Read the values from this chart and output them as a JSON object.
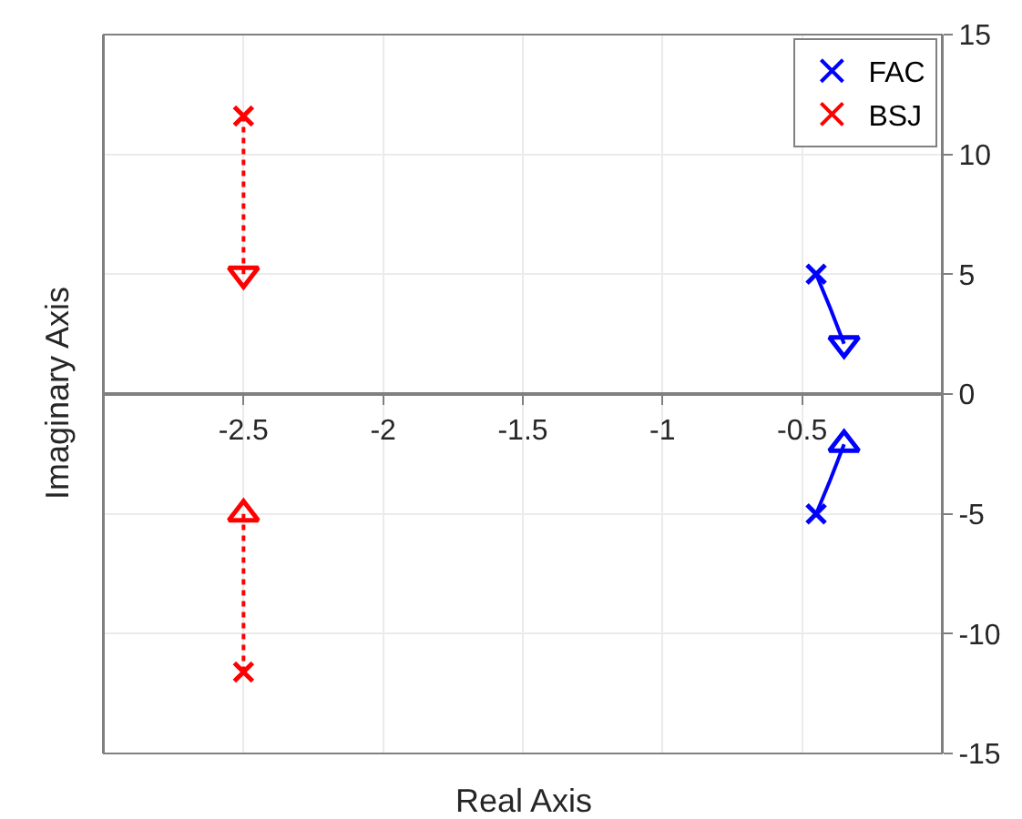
{
  "chart_data": {
    "type": "scatter",
    "xlabel": "Real Axis",
    "ylabel": "Imaginary Axis",
    "xlim": [
      -3,
      0
    ],
    "xticks": [
      -2.5,
      -2,
      -1.5,
      -1,
      -0.5
    ],
    "ylim": [
      -15,
      15
    ],
    "yticks": [
      -15,
      -10,
      -5,
      0,
      5,
      10,
      15
    ],
    "grid": true,
    "legend": "top right",
    "series": [
      {
        "type": "line",
        "color": "#0000ff",
        "line_style": "solid",
        "marker": "none",
        "x": [
          -0.45,
          -0.4,
          -0.35
        ],
        "values": [
          5,
          3.6,
          2.1
        ]
      },
      {
        "type": "line",
        "color": "#0000ff",
        "line_style": "solid",
        "marker": "none",
        "x": [
          -0.45,
          -0.4,
          -0.35
        ],
        "values": [
          -5,
          -3.6,
          -2.1
        ]
      },
      {
        "type": "line",
        "color": "#ff0000",
        "line_style": "dotted",
        "marker": "none",
        "x": [
          -2.5,
          -2.5
        ],
        "values": [
          11.6,
          5
        ]
      },
      {
        "type": "line",
        "color": "#ff0000",
        "line_style": "dotted",
        "marker": "none",
        "x": [
          -2.5,
          -2.5
        ],
        "values": [
          -11.6,
          -5
        ]
      },
      {
        "name": "FAC",
        "color": "#0000ff",
        "marker": "cross",
        "x": [
          -0.45,
          -0.45
        ],
        "values": [
          5,
          -5
        ]
      },
      {
        "name": "BSJ",
        "color": "#ff0000",
        "marker": "cross",
        "x": [
          -2.5,
          -2.5
        ],
        "values": [
          11.6,
          -11.6
        ]
      },
      {
        "color": "#0000ff",
        "marker": "triangle",
        "x": [
          -0.35,
          -0.35
        ],
        "values": [
          2.1,
          -2.1
        ]
      },
      {
        "color": "#ff0000",
        "marker": "triangle",
        "x": [
          -2.5,
          -2.5
        ],
        "values": [
          5,
          -5
        ]
      }
    ]
  }
}
